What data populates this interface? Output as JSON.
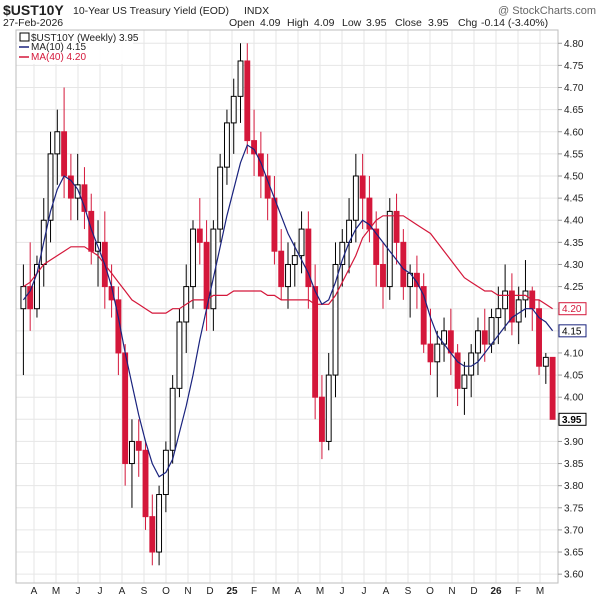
{
  "header": {
    "symbol": "$UST10Y",
    "description": "10-Year US Treasury Yield (EOD)",
    "exchange": "INDX",
    "watermark": "@ StockCharts.com",
    "date": "27-Feb-2026",
    "open_label": "Open",
    "open": "4.09",
    "high_label": "High",
    "high": "4.09",
    "low_label": "Low",
    "low": "3.95",
    "close_label": "Close",
    "close": "3.95",
    "chg_label": "Chg",
    "chg": "-0.14 (-3.40%)"
  },
  "legend": {
    "price": "$UST10Y (Weekly) 3.95",
    "ma10": "MA(10) 4.15",
    "ma40": "MA(40) 4.20"
  },
  "colors": {
    "up": "#000000",
    "down": "#d4173a",
    "ma10": "#1a237e",
    "ma40": "#d4173a"
  },
  "chart_data": {
    "type": "candlestick",
    "period": "weekly",
    "ylim": [
      3.58,
      4.83
    ],
    "y_ticks": [
      "4.80",
      "4.75",
      "4.70",
      "4.65",
      "4.60",
      "4.55",
      "4.50",
      "4.45",
      "4.40",
      "4.35",
      "4.30",
      "4.25",
      "4.20",
      "4.15",
      "4.10",
      "4.05",
      "4.00",
      "3.95",
      "3.90",
      "3.85",
      "3.80",
      "3.75",
      "3.70",
      "3.65",
      "3.60"
    ],
    "month_labels": [
      "A",
      "M",
      "J",
      "J",
      "A",
      "S",
      "O",
      "N",
      "D",
      "25",
      "F",
      "M",
      "A",
      "M",
      "J",
      "J",
      "A",
      "S",
      "O",
      "N",
      "D",
      "26",
      "F",
      "M"
    ],
    "last_value_labels": {
      "ma40": "4.20",
      "ma10": "4.15",
      "close": "3.95"
    },
    "candles": [
      [
        4.2,
        4.3,
        4.05,
        4.25
      ],
      [
        4.25,
        4.35,
        4.15,
        4.2
      ],
      [
        4.2,
        4.32,
        4.18,
        4.3
      ],
      [
        4.3,
        4.45,
        4.25,
        4.4
      ],
      [
        4.4,
        4.6,
        4.35,
        4.55
      ],
      [
        4.55,
        4.65,
        4.48,
        4.6
      ],
      [
        4.6,
        4.7,
        4.45,
        4.5
      ],
      [
        4.5,
        4.55,
        4.4,
        4.45
      ],
      [
        4.45,
        4.55,
        4.4,
        4.48
      ],
      [
        4.48,
        4.52,
        4.38,
        4.42
      ],
      [
        4.42,
        4.46,
        4.3,
        4.33
      ],
      [
        4.33,
        4.4,
        4.25,
        4.35
      ],
      [
        4.35,
        4.42,
        4.2,
        4.25
      ],
      [
        4.25,
        4.3,
        4.18,
        4.22
      ],
      [
        4.22,
        4.25,
        4.05,
        4.1
      ],
      [
        4.1,
        4.12,
        3.8,
        3.85
      ],
      [
        3.85,
        3.95,
        3.75,
        3.9
      ],
      [
        3.9,
        3.95,
        3.82,
        3.88
      ],
      [
        3.88,
        3.9,
        3.7,
        3.73
      ],
      [
        3.73,
        3.78,
        3.62,
        3.65
      ],
      [
        3.65,
        3.8,
        3.62,
        3.78
      ],
      [
        3.78,
        3.9,
        3.74,
        3.88
      ],
      [
        3.88,
        4.05,
        3.85,
        4.02
      ],
      [
        4.02,
        4.2,
        4.0,
        4.17
      ],
      [
        4.17,
        4.3,
        4.1,
        4.25
      ],
      [
        4.25,
        4.4,
        4.2,
        4.38
      ],
      [
        4.38,
        4.45,
        4.3,
        4.35
      ],
      [
        4.35,
        4.4,
        4.15,
        4.2
      ],
      [
        4.2,
        4.4,
        4.15,
        4.38
      ],
      [
        4.38,
        4.55,
        4.35,
        4.52
      ],
      [
        4.52,
        4.65,
        4.48,
        4.62
      ],
      [
        4.62,
        4.72,
        4.55,
        4.68
      ],
      [
        4.68,
        4.8,
        4.62,
        4.76
      ],
      [
        4.76,
        4.8,
        4.55,
        4.58
      ],
      [
        4.58,
        4.65,
        4.5,
        4.55
      ],
      [
        4.55,
        4.6,
        4.45,
        4.5
      ],
      [
        4.5,
        4.55,
        4.4,
        4.45
      ],
      [
        4.45,
        4.5,
        4.3,
        4.33
      ],
      [
        4.33,
        4.38,
        4.22,
        4.25
      ],
      [
        4.25,
        4.35,
        4.2,
        4.3
      ],
      [
        4.3,
        4.35,
        4.25,
        4.32
      ],
      [
        4.32,
        4.42,
        4.28,
        4.38
      ],
      [
        4.38,
        4.42,
        4.2,
        4.25
      ],
      [
        4.25,
        4.3,
        3.95,
        4.0
      ],
      [
        4.0,
        4.05,
        3.86,
        3.9
      ],
      [
        3.9,
        4.1,
        3.88,
        4.05
      ],
      [
        4.05,
        4.35,
        4.0,
        4.3
      ],
      [
        4.3,
        4.38,
        4.25,
        4.35
      ],
      [
        4.35,
        4.45,
        4.28,
        4.4
      ],
      [
        4.4,
        4.55,
        4.35,
        4.5
      ],
      [
        4.5,
        4.55,
        4.38,
        4.45
      ],
      [
        4.45,
        4.5,
        4.35,
        4.38
      ],
      [
        4.38,
        4.42,
        4.25,
        4.3
      ],
      [
        4.3,
        4.35,
        4.2,
        4.25
      ],
      [
        4.25,
        4.45,
        4.22,
        4.42
      ],
      [
        4.42,
        4.46,
        4.3,
        4.35
      ],
      [
        4.35,
        4.38,
        4.22,
        4.25
      ],
      [
        4.25,
        4.3,
        4.18,
        4.28
      ],
      [
        4.28,
        4.32,
        4.2,
        4.25
      ],
      [
        4.25,
        4.28,
        4.1,
        4.12
      ],
      [
        4.12,
        4.2,
        4.05,
        4.08
      ],
      [
        4.08,
        4.15,
        4.0,
        4.12
      ],
      [
        4.12,
        4.18,
        4.08,
        4.15
      ],
      [
        4.15,
        4.2,
        4.05,
        4.1
      ],
      [
        4.1,
        4.12,
        3.98,
        4.02
      ],
      [
        4.02,
        4.08,
        3.96,
        4.05
      ],
      [
        4.05,
        4.12,
        4.0,
        4.1
      ],
      [
        4.1,
        4.18,
        4.05,
        4.15
      ],
      [
        4.15,
        4.2,
        4.08,
        4.12
      ],
      [
        4.12,
        4.2,
        4.1,
        4.18
      ],
      [
        4.18,
        4.25,
        4.12,
        4.2
      ],
      [
        4.2,
        4.3,
        4.15,
        4.24
      ],
      [
        4.24,
        4.28,
        4.14,
        4.17
      ],
      [
        4.17,
        4.25,
        4.12,
        4.22
      ],
      [
        4.22,
        4.31,
        4.18,
        4.24
      ],
      [
        4.24,
        4.25,
        4.15,
        4.2
      ],
      [
        4.2,
        4.22,
        4.05,
        4.07
      ],
      [
        4.07,
        4.1,
        4.03,
        4.09
      ],
      [
        4.09,
        4.09,
        3.95,
        3.95
      ]
    ],
    "ma10": [
      4.22,
      4.24,
      4.28,
      4.35,
      4.42,
      4.47,
      4.5,
      4.49,
      4.47,
      4.43,
      4.38,
      4.34,
      4.3,
      4.25,
      4.18,
      4.1,
      4.03,
      3.96,
      3.9,
      3.85,
      3.82,
      3.83,
      3.86,
      3.92,
      3.98,
      4.05,
      4.13,
      4.2,
      4.27,
      4.34,
      4.41,
      4.47,
      4.53,
      4.57,
      4.56,
      4.53,
      4.49,
      4.45,
      4.41,
      4.37,
      4.34,
      4.31,
      4.28,
      4.24,
      4.21,
      4.22,
      4.26,
      4.31,
      4.35,
      4.38,
      4.4,
      4.39,
      4.37,
      4.35,
      4.33,
      4.31,
      4.29,
      4.28,
      4.26,
      4.23,
      4.18,
      4.14,
      4.12,
      4.1,
      4.08,
      4.07,
      4.07,
      4.08,
      4.1,
      4.12,
      4.14,
      4.16,
      4.18,
      4.19,
      4.2,
      4.2,
      4.18,
      4.17,
      4.15
    ],
    "ma40": [
      4.25,
      4.26,
      4.28,
      4.3,
      4.31,
      4.32,
      4.33,
      4.34,
      4.34,
      4.34,
      4.33,
      4.32,
      4.3,
      4.28,
      4.26,
      4.24,
      4.22,
      4.21,
      4.2,
      4.19,
      4.19,
      4.19,
      4.2,
      4.2,
      4.21,
      4.22,
      4.22,
      4.22,
      4.23,
      4.23,
      4.23,
      4.24,
      4.24,
      4.24,
      4.24,
      4.24,
      4.23,
      4.23,
      4.22,
      4.22,
      4.22,
      4.22,
      4.22,
      4.21,
      4.21,
      4.21,
      4.23,
      4.26,
      4.29,
      4.32,
      4.36,
      4.38,
      4.4,
      4.41,
      4.41,
      4.41,
      4.41,
      4.4,
      4.39,
      4.38,
      4.37,
      4.35,
      4.33,
      4.31,
      4.29,
      4.27,
      4.26,
      4.25,
      4.24,
      4.24,
      4.23,
      4.23,
      4.23,
      4.23,
      4.23,
      4.22,
      4.22,
      4.21,
      4.2
    ]
  }
}
